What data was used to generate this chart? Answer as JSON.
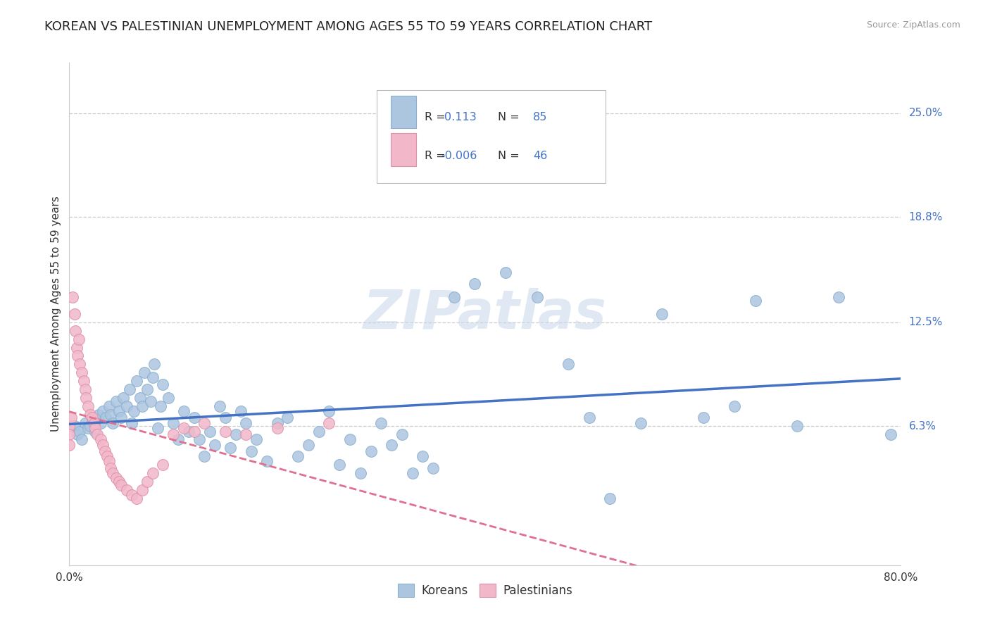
{
  "title": "KOREAN VS PALESTINIAN UNEMPLOYMENT AMONG AGES 55 TO 59 YEARS CORRELATION CHART",
  "source": "Source: ZipAtlas.com",
  "ylabel": "Unemployment Among Ages 55 to 59 years",
  "xlim": [
    0.0,
    0.8
  ],
  "ylim": [
    -0.02,
    0.28
  ],
  "xticks": [
    0.0,
    0.1,
    0.2,
    0.3,
    0.4,
    0.5,
    0.6,
    0.7,
    0.8
  ],
  "ytick_right_labels": [
    "25.0%",
    "18.8%",
    "12.5%",
    "6.3%"
  ],
  "ytick_right_values": [
    0.25,
    0.188,
    0.125,
    0.063
  ],
  "korean_R": 0.113,
  "korean_N": 85,
  "palestinian_R": -0.006,
  "palestinian_N": 46,
  "korean_color": "#adc6e0",
  "korean_marker_edge": "#8ab0d0",
  "palestinian_color": "#f2b8ca",
  "palestinian_marker_edge": "#e090a8",
  "trend_korean_color": "#4472c4",
  "trend_palestinian_color": "#e07090",
  "background_color": "#ffffff",
  "grid_color": "#cccccc",
  "watermark": "ZIPatlas",
  "title_fontsize": 13,
  "axis_label_fontsize": 11,
  "tick_fontsize": 11,
  "legend_fontsize": 12,
  "korean_x": [
    0.005,
    0.008,
    0.01,
    0.012,
    0.015,
    0.018,
    0.02,
    0.022,
    0.025,
    0.028,
    0.03,
    0.032,
    0.035,
    0.038,
    0.04,
    0.042,
    0.045,
    0.048,
    0.05,
    0.052,
    0.055,
    0.058,
    0.06,
    0.062,
    0.065,
    0.068,
    0.07,
    0.072,
    0.075,
    0.078,
    0.08,
    0.082,
    0.085,
    0.088,
    0.09,
    0.095,
    0.1,
    0.105,
    0.11,
    0.115,
    0.12,
    0.125,
    0.13,
    0.135,
    0.14,
    0.145,
    0.15,
    0.155,
    0.16,
    0.165,
    0.17,
    0.175,
    0.18,
    0.19,
    0.2,
    0.21,
    0.22,
    0.23,
    0.24,
    0.25,
    0.26,
    0.27,
    0.28,
    0.29,
    0.3,
    0.31,
    0.32,
    0.33,
    0.34,
    0.35,
    0.37,
    0.39,
    0.42,
    0.45,
    0.48,
    0.5,
    0.52,
    0.55,
    0.57,
    0.61,
    0.64,
    0.66,
    0.7,
    0.74,
    0.79
  ],
  "korean_y": [
    0.063,
    0.058,
    0.06,
    0.055,
    0.065,
    0.062,
    0.063,
    0.068,
    0.06,
    0.07,
    0.065,
    0.072,
    0.068,
    0.075,
    0.07,
    0.065,
    0.078,
    0.072,
    0.068,
    0.08,
    0.075,
    0.085,
    0.065,
    0.072,
    0.09,
    0.08,
    0.075,
    0.095,
    0.085,
    0.078,
    0.092,
    0.1,
    0.062,
    0.075,
    0.088,
    0.08,
    0.065,
    0.055,
    0.072,
    0.06,
    0.068,
    0.055,
    0.045,
    0.06,
    0.052,
    0.075,
    0.068,
    0.05,
    0.058,
    0.072,
    0.065,
    0.048,
    0.055,
    0.042,
    0.065,
    0.068,
    0.045,
    0.052,
    0.06,
    0.072,
    0.04,
    0.055,
    0.035,
    0.048,
    0.065,
    0.052,
    0.058,
    0.035,
    0.045,
    0.038,
    0.14,
    0.148,
    0.155,
    0.14,
    0.1,
    0.068,
    0.02,
    0.065,
    0.13,
    0.068,
    0.075,
    0.138,
    0.063,
    0.14,
    0.058
  ],
  "palestinian_x": [
    0.0,
    0.0,
    0.0,
    0.002,
    0.003,
    0.005,
    0.006,
    0.007,
    0.008,
    0.009,
    0.01,
    0.012,
    0.014,
    0.015,
    0.016,
    0.018,
    0.02,
    0.022,
    0.024,
    0.025,
    0.027,
    0.03,
    0.032,
    0.034,
    0.036,
    0.038,
    0.04,
    0.042,
    0.045,
    0.048,
    0.05,
    0.055,
    0.06,
    0.065,
    0.07,
    0.075,
    0.08,
    0.09,
    0.1,
    0.11,
    0.12,
    0.13,
    0.15,
    0.17,
    0.2,
    0.25
  ],
  "palestinian_y": [
    0.063,
    0.058,
    0.052,
    0.068,
    0.14,
    0.13,
    0.12,
    0.11,
    0.105,
    0.115,
    0.1,
    0.095,
    0.09,
    0.085,
    0.08,
    0.075,
    0.07,
    0.068,
    0.065,
    0.062,
    0.058,
    0.055,
    0.052,
    0.048,
    0.045,
    0.042,
    0.038,
    0.035,
    0.032,
    0.03,
    0.028,
    0.025,
    0.022,
    0.02,
    0.025,
    0.03,
    0.035,
    0.04,
    0.058,
    0.062,
    0.06,
    0.065,
    0.06,
    0.058,
    0.062,
    0.065
  ]
}
